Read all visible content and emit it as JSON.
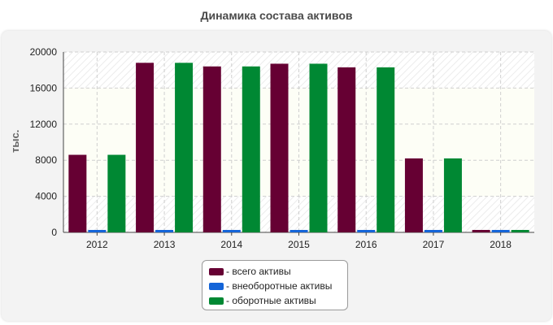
{
  "chart_data": {
    "type": "bar",
    "title": "Динамика состава активов",
    "ylabel": "тыс.",
    "xlabel": "",
    "categories": [
      "2012",
      "2013",
      "2014",
      "2015",
      "2016",
      "2017",
      "2018"
    ],
    "ylim": [
      0,
      20000
    ],
    "yticks": [
      "0",
      "4000",
      "8000",
      "12000",
      "16000",
      "20000"
    ],
    "grid": true,
    "legend_position": "bottom",
    "series": [
      {
        "name": "- всего активы",
        "color": "#660033",
        "values": [
          8600,
          18800,
          18400,
          18700,
          18300,
          8200,
          120
        ]
      },
      {
        "name": "- внеоборотные активы",
        "color": "#1464d8",
        "values": [
          120,
          120,
          120,
          120,
          120,
          120,
          120
        ]
      },
      {
        "name": "- оборотные активы",
        "color": "#008833",
        "values": [
          8600,
          18800,
          18400,
          18700,
          18300,
          8200,
          120
        ]
      }
    ]
  }
}
